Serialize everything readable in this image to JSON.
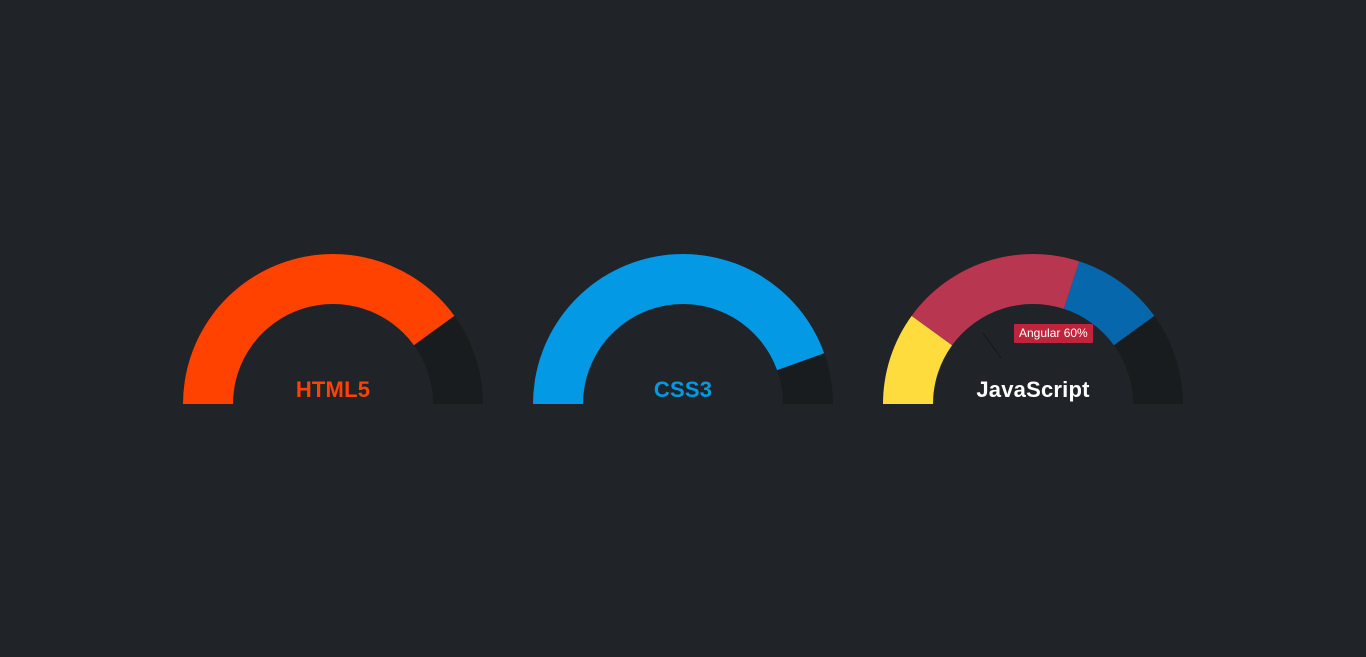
{
  "colors": {
    "background": "#202428",
    "track": "#191c1f"
  },
  "chart_data": [
    {
      "type": "pie",
      "title": "HTML5",
      "title_color": "#ff4200",
      "max": 100,
      "segments": [
        {
          "name": "",
          "value": 80,
          "color": "#ff4200"
        }
      ]
    },
    {
      "type": "pie",
      "title": "CSS3",
      "title_color": "#0499e4",
      "max": 100,
      "segments": [
        {
          "name": "",
          "value": 89,
          "color": "#0499e4"
        }
      ]
    },
    {
      "type": "pie",
      "title": "JavaScript",
      "title_color": "#ffffff",
      "max": 100,
      "segments": [
        {
          "name": "",
          "value": 20,
          "color": "#fedc3d"
        },
        {
          "name": "Angular",
          "value": 40,
          "color": "#b93651"
        },
        {
          "name": "",
          "value": 20,
          "color": "#0767ad"
        }
      ],
      "tooltip": "Angular 60%"
    }
  ]
}
